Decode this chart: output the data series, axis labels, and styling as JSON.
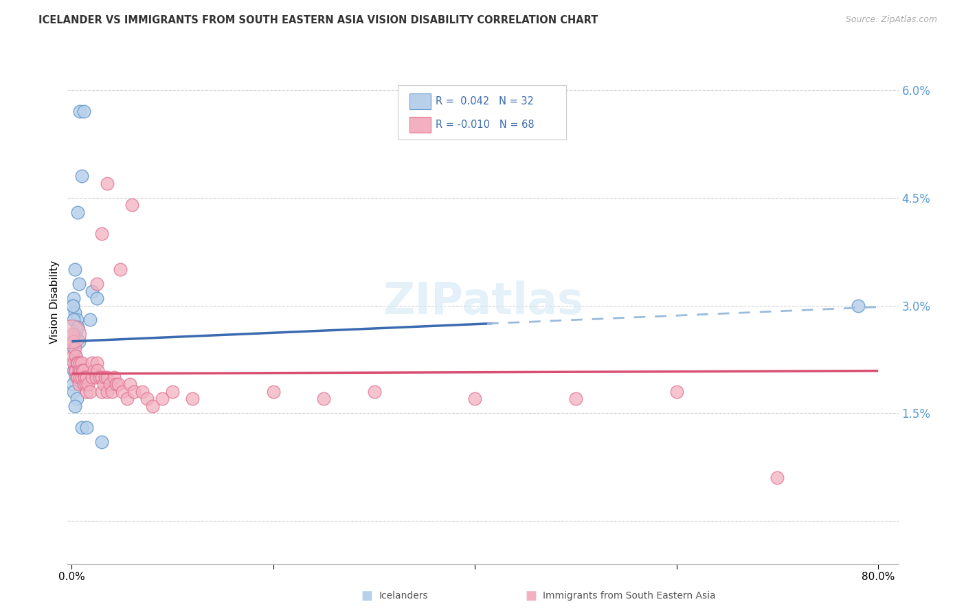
{
  "title": "ICELANDER VS IMMIGRANTS FROM SOUTH EASTERN ASIA VISION DISABILITY CORRELATION CHART",
  "source": "Source: ZipAtlas.com",
  "ylabel": "Vision Disability",
  "yticks": [
    0.0,
    0.015,
    0.03,
    0.045,
    0.06
  ],
  "ytick_labels": [
    "",
    "1.5%",
    "3.0%",
    "4.5%",
    "6.0%"
  ],
  "xlim": [
    -0.004,
    0.82
  ],
  "ylim": [
    -0.006,
    0.067
  ],
  "color_blue_fill": "#b8d0ea",
  "color_blue_edge": "#6699cc",
  "color_pink_fill": "#f2b0c0",
  "color_pink_edge": "#e07090",
  "color_blue_line": "#3a6ab0",
  "color_pink_line": "#d94f72",
  "color_blue_dash": "#99bbdd",
  "watermark": "ZIPatlas",
  "background_color": "#ffffff",
  "grid_color": "#cccccc",
  "blue_x": [
    0.008,
    0.012,
    0.01,
    0.006,
    0.003,
    0.007,
    0.002,
    0.001,
    0.003,
    0.005,
    0.001,
    0.002,
    0.004,
    0.003,
    0.002,
    0.004,
    0.001,
    0.002,
    0.02,
    0.025,
    0.018,
    0.005,
    0.003,
    0.01,
    0.015,
    0.001,
    0.002,
    0.78,
    0.03,
    0.004,
    0.006,
    0.007
  ],
  "blue_y": [
    0.057,
    0.057,
    0.048,
    0.043,
    0.035,
    0.033,
    0.031,
    0.03,
    0.029,
    0.028,
    0.025,
    0.024,
    0.023,
    0.022,
    0.021,
    0.02,
    0.019,
    0.018,
    0.032,
    0.031,
    0.028,
    0.017,
    0.016,
    0.013,
    0.013,
    0.03,
    0.028,
    0.03,
    0.011,
    0.026,
    0.027,
    0.025
  ],
  "pink_x": [
    0.001,
    0.001,
    0.002,
    0.002,
    0.003,
    0.003,
    0.004,
    0.004,
    0.005,
    0.005,
    0.006,
    0.006,
    0.007,
    0.007,
    0.008,
    0.008,
    0.009,
    0.01,
    0.01,
    0.011,
    0.012,
    0.012,
    0.013,
    0.014,
    0.015,
    0.015,
    0.016,
    0.018,
    0.02,
    0.02,
    0.022,
    0.024,
    0.025,
    0.026,
    0.028,
    0.03,
    0.03,
    0.032,
    0.033,
    0.035,
    0.035,
    0.038,
    0.04,
    0.042,
    0.044,
    0.046,
    0.05,
    0.055,
    0.058,
    0.062,
    0.07,
    0.075,
    0.08,
    0.09,
    0.1,
    0.12,
    0.2,
    0.25,
    0.3,
    0.4,
    0.5,
    0.6,
    0.7,
    0.035,
    0.06,
    0.03,
    0.048,
    0.025
  ],
  "pink_y": [
    0.026,
    0.023,
    0.025,
    0.022,
    0.024,
    0.021,
    0.023,
    0.021,
    0.022,
    0.02,
    0.022,
    0.02,
    0.021,
    0.019,
    0.022,
    0.02,
    0.021,
    0.022,
    0.02,
    0.021,
    0.021,
    0.019,
    0.02,
    0.019,
    0.02,
    0.018,
    0.019,
    0.018,
    0.022,
    0.02,
    0.021,
    0.02,
    0.022,
    0.021,
    0.02,
    0.02,
    0.018,
    0.019,
    0.02,
    0.02,
    0.018,
    0.019,
    0.018,
    0.02,
    0.019,
    0.019,
    0.018,
    0.017,
    0.019,
    0.018,
    0.018,
    0.017,
    0.016,
    0.017,
    0.018,
    0.017,
    0.018,
    0.017,
    0.018,
    0.017,
    0.017,
    0.018,
    0.006,
    0.047,
    0.044,
    0.04,
    0.035,
    0.033
  ]
}
